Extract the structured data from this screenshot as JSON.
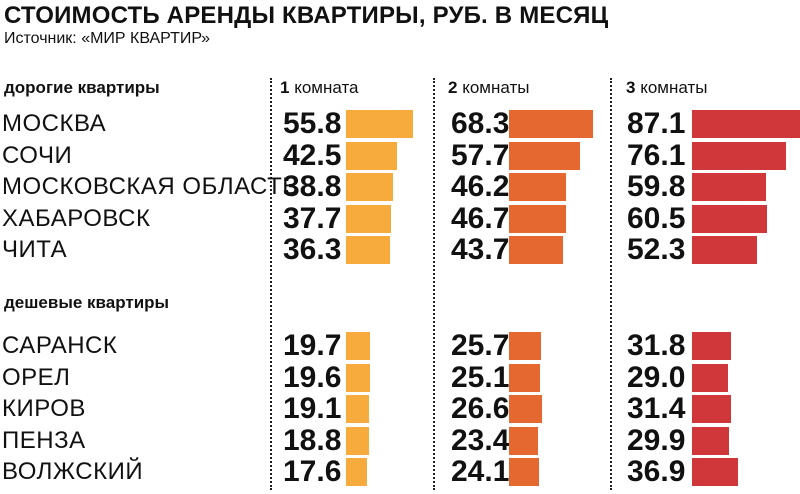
{
  "title": "СТОИМОСТЬ АРЕНДЫ КВАРТИРЫ, РУБ. В МЕСЯЦ",
  "source": "Источник: «МИР КВАРТИР»",
  "colors": {
    "1": "#f6ab3c",
    "2": "#e4682f",
    "3": "#d0373a"
  },
  "chart_data": {
    "type": "bar",
    "title": "СТОИМОСТЬ АРЕНДЫ КВАРТИРЫ, РУБ. В МЕСЯЦ",
    "columns": [
      {
        "num": "1",
        "label": "комната"
      },
      {
        "num": "2",
        "label": "комнаты"
      },
      {
        "num": "3",
        "label": "комнаты"
      }
    ],
    "groups": [
      {
        "name": "дорогие квартиры",
        "rows": [
          {
            "city": "МОСКВА",
            "values": [
              "55.8",
              "68.3",
              "87.1"
            ]
          },
          {
            "city": "СОЧИ",
            "values": [
              "42.5",
              "57.7",
              "76.1"
            ]
          },
          {
            "city": "МОСКОВСКАЯ ОБЛАСТЬ",
            "values": [
              "38.8",
              "46.2",
              "59.8"
            ]
          },
          {
            "city": "ХАБАРОВСК",
            "values": [
              "37.7",
              "46.7",
              "60.5"
            ]
          },
          {
            "city": "ЧИТА",
            "values": [
              "36.3",
              "43.7",
              "52.3"
            ]
          }
        ]
      },
      {
        "name": "дешевые квартиры",
        "rows": [
          {
            "city": "САРАНСК",
            "values": [
              "19.7",
              "25.7",
              "31.8"
            ]
          },
          {
            "city": "ОРЕЛ",
            "values": [
              "19.6",
              "25.1",
              "29.0"
            ]
          },
          {
            "city": "КИРОВ",
            "values": [
              "19.1",
              "26.6",
              "31.4"
            ]
          },
          {
            "city": "ПЕНЗА",
            "values": [
              "18.8",
              "23.4",
              "29.9"
            ]
          },
          {
            "city": "ВОЛЖСКИЙ",
            "values": [
              "17.6",
              "24.1",
              "36.9"
            ]
          }
        ]
      }
    ]
  }
}
